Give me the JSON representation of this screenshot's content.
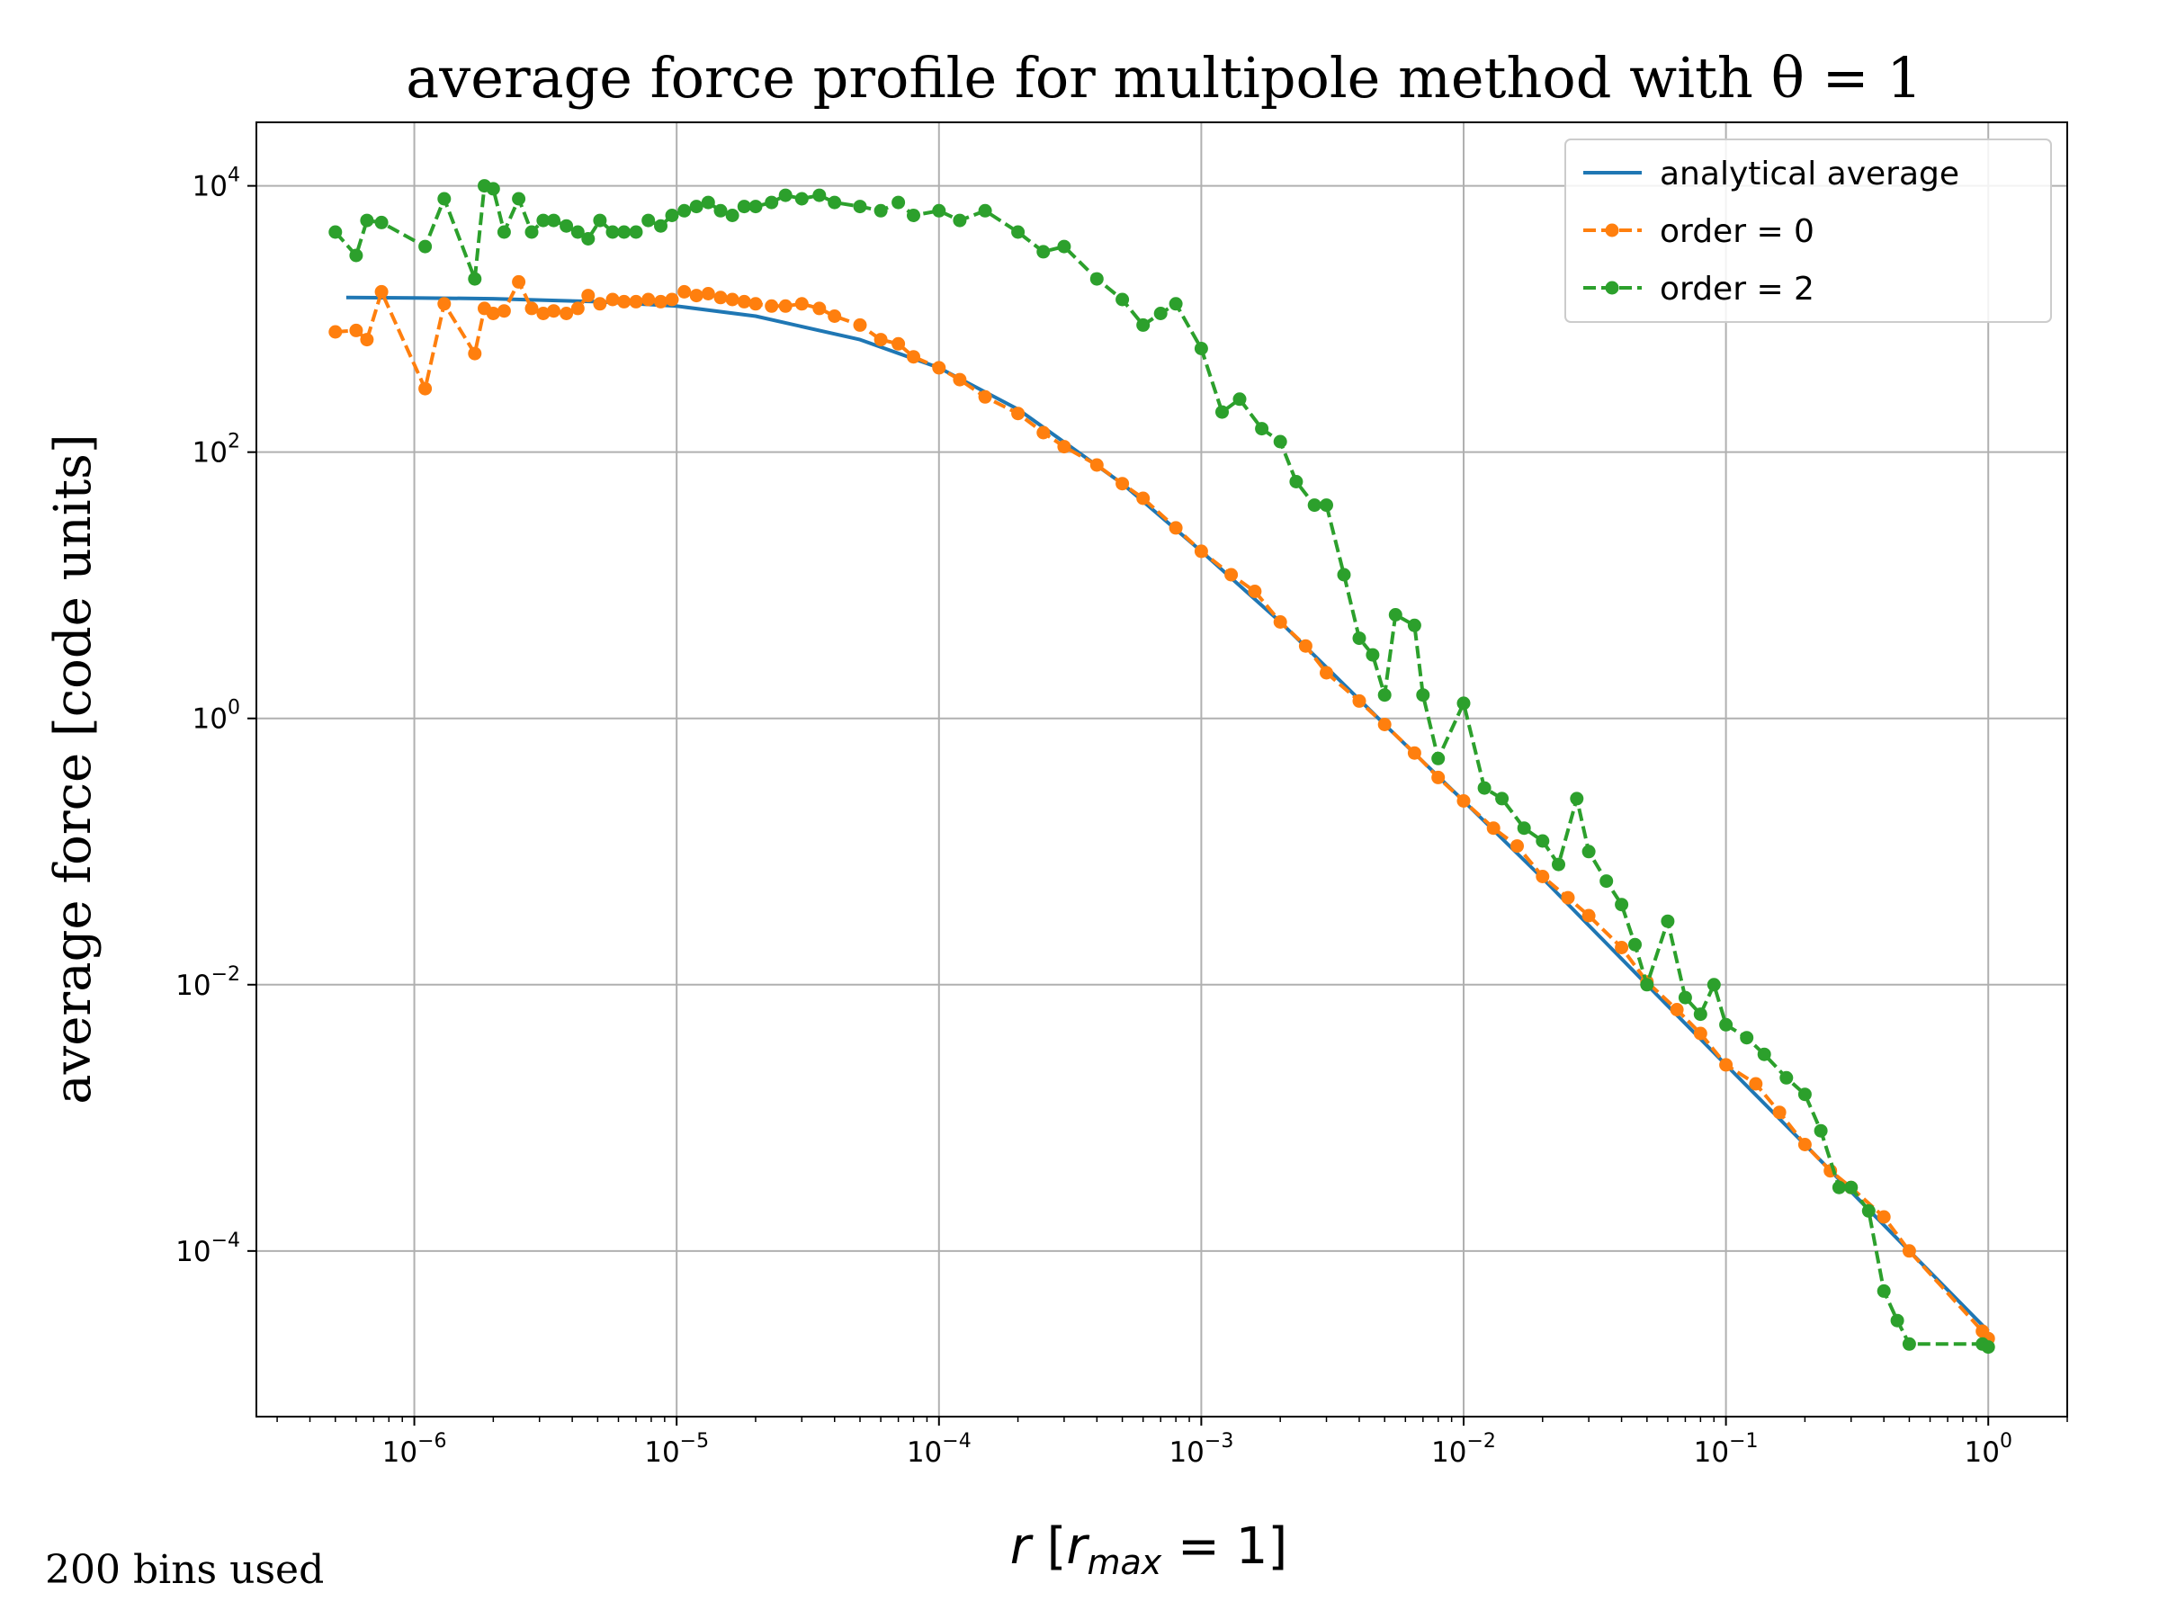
{
  "chart_data": {
    "type": "line",
    "title": "average force profile for multipole method with θ = 1",
    "xlabel": "r [r_max = 1]",
    "ylabel": "average force [code units]",
    "footnote": "200 bins used",
    "xscale": "log",
    "yscale": "log",
    "xlim": [
      2.5e-07,
      2.0
    ],
    "ylim": [
      5.7e-06,
      30000.0
    ],
    "grid": true,
    "legend_position": "top-right",
    "x_ticks": [
      {
        "value": 1e-06,
        "base": "10",
        "exp": "−6"
      },
      {
        "value": 1e-05,
        "base": "10",
        "exp": "−5"
      },
      {
        "value": 0.0001,
        "base": "10",
        "exp": "−4"
      },
      {
        "value": 0.001,
        "base": "10",
        "exp": "−3"
      },
      {
        "value": 0.01,
        "base": "10",
        "exp": "−2"
      },
      {
        "value": 0.1,
        "base": "10",
        "exp": "−1"
      },
      {
        "value": 1,
        "base": "10",
        "exp": "0"
      }
    ],
    "y_ticks": [
      {
        "value": 0.0001,
        "base": "10",
        "exp": "−4"
      },
      {
        "value": 0.01,
        "base": "10",
        "exp": "−2"
      },
      {
        "value": 1,
        "base": "10",
        "exp": "0"
      },
      {
        "value": 100.0,
        "base": "10",
        "exp": "2"
      },
      {
        "value": 10000.0,
        "base": "10",
        "exp": "4"
      }
    ],
    "series": [
      {
        "name": "analytical average",
        "color": "#1f77b4",
        "style": "solid",
        "markers": false,
        "x": [
          5.5e-07,
          1e-06,
          2e-06,
          5e-06,
          1e-05,
          2e-05,
          5e-05,
          0.0001,
          0.0002,
          0.0005,
          0.001,
          0.002,
          0.005,
          0.01,
          0.02,
          0.05,
          0.1,
          0.2,
          0.5,
          1.0
        ],
        "y": [
          1450,
          1440,
          1420,
          1350,
          1250,
          1050,
          700,
          430,
          210,
          58,
          18,
          5.3,
          0.9,
          0.24,
          0.063,
          0.01,
          0.0025,
          0.00063,
          0.0001,
          2.5e-05
        ]
      },
      {
        "name": "order = 0",
        "color": "#ff7f0e",
        "style": "dashed",
        "markers": true,
        "x": [
          5e-07,
          6e-07,
          6.6e-07,
          7.5e-07,
          1.1e-06,
          1.3e-06,
          1.7e-06,
          1.85e-06,
          2e-06,
          2.2e-06,
          2.5e-06,
          2.8e-06,
          3.1e-06,
          3.4e-06,
          3.8e-06,
          4.2e-06,
          4.6e-06,
          5.1e-06,
          5.7e-06,
          6.3e-06,
          7e-06,
          7.8e-06,
          8.7e-06,
          9.6e-06,
          1.07e-05,
          1.19e-05,
          1.32e-05,
          1.47e-05,
          1.63e-05,
          1.81e-05,
          2e-05,
          2.3e-05,
          2.6e-05,
          3e-05,
          3.5e-05,
          4e-05,
          5e-05,
          6e-05,
          7e-05,
          8e-05,
          0.0001,
          0.00012,
          0.00015,
          0.0002,
          0.00025,
          0.0003,
          0.0004,
          0.0005,
          0.0006,
          0.0008,
          0.001,
          0.0013,
          0.0016,
          0.002,
          0.0025,
          0.003,
          0.004,
          0.005,
          0.0065,
          0.008,
          0.01,
          0.013,
          0.016,
          0.02,
          0.025,
          0.03,
          0.04,
          0.05,
          0.065,
          0.08,
          0.1,
          0.13,
          0.16,
          0.2,
          0.25,
          0.3,
          0.4,
          0.5,
          0.95,
          1.0
        ],
        "y": [
          800,
          820,
          700,
          1600,
          300,
          1300,
          550,
          1200,
          1100,
          1150,
          1900,
          1200,
          1100,
          1150,
          1100,
          1200,
          1500,
          1300,
          1400,
          1350,
          1350,
          1400,
          1350,
          1400,
          1600,
          1500,
          1550,
          1450,
          1400,
          1350,
          1300,
          1250,
          1250,
          1300,
          1200,
          1050,
          900,
          700,
          650,
          520,
          430,
          350,
          260,
          195,
          140,
          110,
          80,
          58,
          45,
          27,
          18,
          12,
          9,
          5.3,
          3.5,
          2.2,
          1.35,
          0.9,
          0.55,
          0.36,
          0.24,
          0.15,
          0.11,
          0.065,
          0.045,
          0.033,
          0.019,
          0.0105,
          0.0065,
          0.0043,
          0.0025,
          0.0018,
          0.0011,
          0.00063,
          0.0004,
          0.0003,
          0.00018,
          0.0001,
          2.5e-05,
          2.2e-05
        ]
      },
      {
        "name": "order = 2",
        "color": "#2ca02c",
        "style": "dashed",
        "markers": true,
        "x": [
          5e-07,
          6e-07,
          6.6e-07,
          7.5e-07,
          1.1e-06,
          1.3e-06,
          1.7e-06,
          1.85e-06,
          2e-06,
          2.2e-06,
          2.5e-06,
          2.8e-06,
          3.1e-06,
          3.4e-06,
          3.8e-06,
          4.2e-06,
          4.6e-06,
          5.1e-06,
          5.7e-06,
          6.3e-06,
          7e-06,
          7.8e-06,
          8.7e-06,
          9.6e-06,
          1.07e-05,
          1.19e-05,
          1.32e-05,
          1.47e-05,
          1.63e-05,
          1.81e-05,
          2e-05,
          2.3e-05,
          2.6e-05,
          3e-05,
          3.5e-05,
          4e-05,
          5e-05,
          6e-05,
          7e-05,
          8e-05,
          0.0001,
          0.00012,
          0.00015,
          0.0002,
          0.00025,
          0.0003,
          0.0004,
          0.0005,
          0.0006,
          0.0007,
          0.0008,
          0.001,
          0.0012,
          0.0014,
          0.0017,
          0.002,
          0.0023,
          0.0027,
          0.003,
          0.0035,
          0.004,
          0.0045,
          0.005,
          0.0055,
          0.0065,
          0.007,
          0.008,
          0.01,
          0.012,
          0.014,
          0.017,
          0.02,
          0.023,
          0.027,
          0.03,
          0.035,
          0.04,
          0.045,
          0.05,
          0.06,
          0.07,
          0.08,
          0.09,
          0.1,
          0.12,
          0.14,
          0.17,
          0.2,
          0.23,
          0.27,
          0.3,
          0.35,
          0.4,
          0.45,
          0.5,
          0.95,
          1.0
        ],
        "y": [
          4500,
          3000,
          5500,
          5300,
          3500,
          8000,
          2000,
          10000,
          9500,
          4500,
          8000,
          4500,
          5500,
          5500,
          5000,
          4500,
          4000,
          5500,
          4500,
          4500,
          4500,
          5500,
          5000,
          6000,
          6500,
          7000,
          7500,
          6500,
          6000,
          7000,
          7000,
          7500,
          8500,
          8000,
          8500,
          7500,
          7000,
          6500,
          7500,
          6000,
          6500,
          5500,
          6500,
          4500,
          3200,
          3500,
          2000,
          1400,
          900,
          1100,
          1300,
          600,
          200,
          250,
          150,
          120,
          60,
          40,
          40,
          12,
          4,
          3,
          1.5,
          6,
          5,
          1.5,
          0.5,
          1.3,
          0.3,
          0.25,
          0.15,
          0.12,
          0.08,
          0.25,
          0.1,
          0.06,
          0.04,
          0.02,
          0.01,
          0.03,
          0.008,
          0.006,
          0.01,
          0.005,
          0.004,
          0.003,
          0.002,
          0.0015,
          0.0008,
          0.0003,
          0.0003,
          0.0002,
          5e-05,
          3e-05,
          2e-05,
          2e-05,
          1.9e-05
        ]
      }
    ]
  }
}
